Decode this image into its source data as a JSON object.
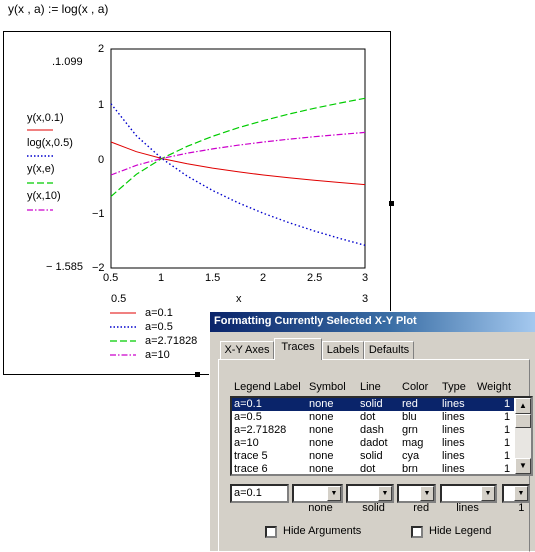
{
  "definition": "y(x , a) := log(x , a)",
  "plot": {
    "y_top_label": ".1.099",
    "y_bottom_label": "− 1.585",
    "y_ticks": [
      "2",
      "1",
      "0",
      "−1",
      "−2"
    ],
    "x_ticks": [
      "0.5",
      "1",
      "1.5",
      "2",
      "2.5",
      "3"
    ],
    "x_min_label": "0.5",
    "x_max_label": "3",
    "x_axis_label": "x",
    "left_legend": [
      "y(x,0.1)",
      "log(x,0.5)",
      "y(x,e)",
      "y(x,10)"
    ],
    "bottom_legend": [
      "a=0.1",
      "a=0.5",
      "a=2.71828",
      "a=10"
    ]
  },
  "chart_data": {
    "type": "line",
    "xlabel": "x",
    "xlim": [
      0.5,
      3
    ],
    "ylim": [
      -2,
      2
    ],
    "x": [
      0.5,
      0.75,
      1,
      1.25,
      1.5,
      1.75,
      2,
      2.25,
      2.5,
      2.75,
      3
    ],
    "series": [
      {
        "name": "a=0.1",
        "color": "#e00000",
        "values": [
          0.301,
          0.125,
          0,
          -0.097,
          -0.176,
          -0.243,
          -0.301,
          -0.352,
          -0.398,
          -0.439,
          -0.477
        ]
      },
      {
        "name": "a=0.5",
        "color": "#0000cc",
        "values": [
          1,
          0.415,
          0,
          -0.322,
          -0.585,
          -0.807,
          -1,
          -1.17,
          -1.322,
          -1.459,
          -1.585
        ]
      },
      {
        "name": "a=2.71828",
        "color": "#00cc00",
        "values": [
          -0.693,
          -0.288,
          0,
          0.223,
          0.405,
          0.56,
          0.693,
          0.811,
          0.916,
          1.012,
          1.099
        ]
      },
      {
        "name": "a=10",
        "color": "#cc00cc",
        "values": [
          -0.301,
          -0.125,
          0,
          0.097,
          0.176,
          0.243,
          0.301,
          0.352,
          0.398,
          0.439,
          0.477
        ]
      }
    ],
    "grid": false
  },
  "dialog": {
    "title": "Formatting Currently Selected X-Y Plot",
    "tabs": [
      "X-Y Axes",
      "Traces",
      "Labels",
      "Defaults"
    ],
    "active_tab": "Traces",
    "headers": [
      "Legend Label",
      "Symbol",
      "Line",
      "Color",
      "Type",
      "Weight"
    ],
    "rows": [
      [
        "a=0.1",
        "none",
        "solid",
        "red",
        "lines",
        "1"
      ],
      [
        "a=0.5",
        "none",
        "dot",
        "blu",
        "lines",
        "1"
      ],
      [
        "a=2.71828",
        "none",
        "dash",
        "grn",
        "lines",
        "1"
      ],
      [
        "a=10",
        "none",
        "dadot",
        "mag",
        "lines",
        "1"
      ],
      [
        "trace 5",
        "none",
        "solid",
        "cya",
        "lines",
        "1"
      ],
      [
        "trace 6",
        "none",
        "dot",
        "brn",
        "lines",
        "1"
      ]
    ],
    "edit": {
      "label": "a=0.1",
      "symbol": "none",
      "line": "solid",
      "color": "red",
      "type": "lines",
      "weight": "1"
    },
    "hide_arguments": "Hide Arguments",
    "hide_legend": "Hide Legend"
  }
}
